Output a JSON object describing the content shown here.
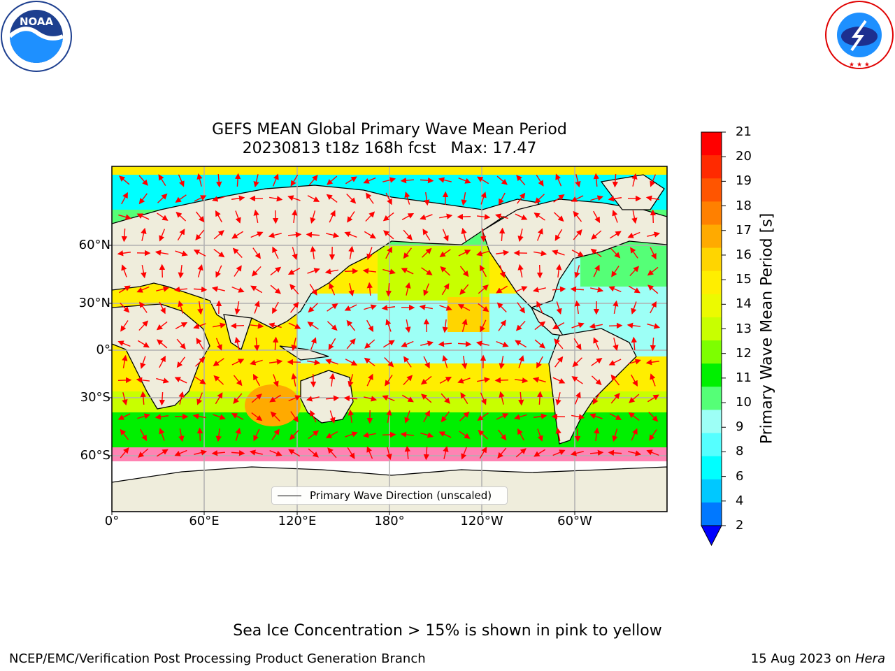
{
  "title_line1": "GEFS MEAN Global Primary Wave Mean Period",
  "title_line2": "20230813 t18z 168h fcst   Max: 17.47",
  "map": {
    "lat_labels": [
      "60°N",
      "30°N",
      "0°",
      "30°S",
      "60°S"
    ],
    "lon_labels": [
      "0°",
      "60°E",
      "120°E",
      "180°",
      "120°W",
      "60°W"
    ],
    "legend_label": "Primary Wave Direction (unscaled)",
    "arrow_color": "#ff0000",
    "land_color": "#efeddc",
    "grid_color": "#b0b0b0"
  },
  "colorbar": {
    "label": "Primary Wave Mean Period [s]",
    "ticks": [
      "21",
      "20",
      "19",
      "18",
      "17",
      "16",
      "15",
      "14",
      "13",
      "12",
      "11",
      "10",
      "9",
      "8",
      "6",
      "4",
      "2"
    ],
    "colors": [
      "#ff0000",
      "#ff2a00",
      "#ff5500",
      "#ff8000",
      "#ffaa00",
      "#ffd500",
      "#ffee00",
      "#ecfa00",
      "#c8ff00",
      "#7dff00",
      "#00f000",
      "#55ff77",
      "#9dfff6",
      "#55ffff",
      "#00ffff",
      "#00c8ff",
      "#0078ff"
    ],
    "extend_color": "#0000ff"
  },
  "sea_ice_note": "Sea Ice Concentration > 15% is shown in pink to yellow",
  "footer": {
    "left": "NCEP/EMC/Verification Post Processing Product Generation Branch",
    "date": "15 Aug 2023 on",
    "machine": "Hera"
  },
  "logos": {
    "noaa": "NOAA",
    "nws": "NATIONAL WEATHER SERVICE"
  }
}
